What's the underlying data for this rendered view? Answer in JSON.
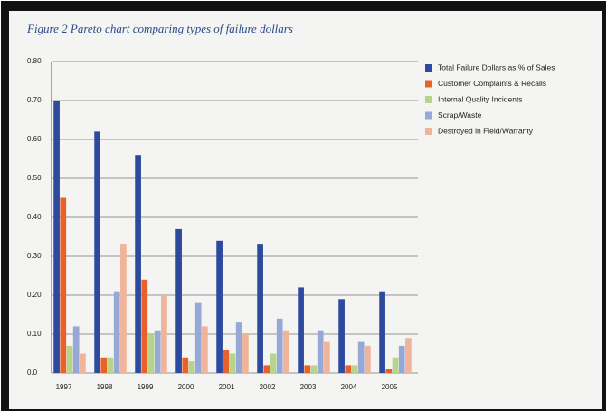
{
  "chart_data": {
    "type": "bar",
    "title": "Figure 2 Pareto chart comparing types of failure dollars",
    "categories": [
      "1997",
      "1998",
      "1999",
      "2000",
      "2001",
      "2002",
      "2003",
      "2004",
      "2005"
    ],
    "series": [
      {
        "name": "Total Failure Dollars as % of Sales",
        "color": "#2e4a9e",
        "values": [
          0.7,
          0.62,
          0.56,
          0.37,
          0.34,
          0.33,
          0.22,
          0.19,
          0.21
        ]
      },
      {
        "name": "Customer Complaints & Recalls",
        "color": "#e8602a",
        "values": [
          0.45,
          0.04,
          0.24,
          0.04,
          0.06,
          0.02,
          0.02,
          0.02,
          0.01
        ]
      },
      {
        "name": "Internal Quality Incidents",
        "color": "#b8d48a",
        "values": [
          0.07,
          0.04,
          0.1,
          0.03,
          0.05,
          0.05,
          0.02,
          0.02,
          0.04
        ]
      },
      {
        "name": "Scrap/Waste",
        "color": "#95a8d6",
        "values": [
          0.12,
          0.21,
          0.11,
          0.18,
          0.13,
          0.14,
          0.11,
          0.08,
          0.07
        ]
      },
      {
        "name": "Destroyed in Field/Warranty",
        "color": "#f0b49a",
        "values": [
          0.05,
          0.33,
          0.2,
          0.12,
          0.1,
          0.11,
          0.08,
          0.07,
          0.09
        ]
      }
    ],
    "ylim": [
      0,
      0.8
    ],
    "yticks": [
      {
        "value": 0,
        "label": "0.0"
      },
      {
        "value": 0.1,
        "label": "0.10"
      },
      {
        "value": 0.2,
        "label": "0.20"
      },
      {
        "value": 0.3,
        "label": "0.30"
      },
      {
        "value": 0.4,
        "label": "0.40"
      },
      {
        "value": 0.5,
        "label": "0.50"
      },
      {
        "value": 0.6,
        "label": "0.60"
      },
      {
        "value": 0.7,
        "label": "0.70"
      },
      {
        "value": 0.8,
        "label": "0.80"
      }
    ],
    "grid": true
  }
}
